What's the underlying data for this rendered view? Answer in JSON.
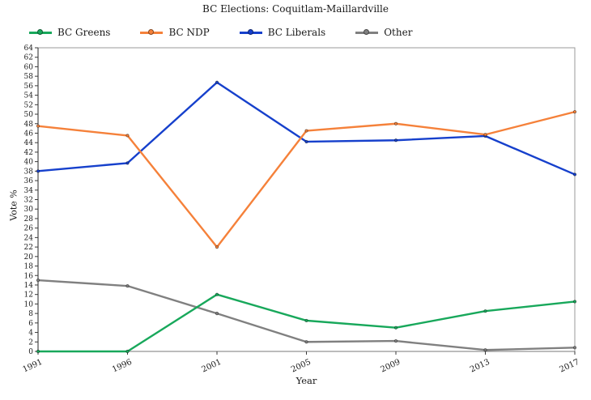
{
  "chart_data": {
    "type": "line",
    "title": "BC Elections: Coquitlam-Maillardville",
    "xlabel": "Year",
    "ylabel": "Vote %",
    "categories": [
      1991,
      1996,
      2001,
      2005,
      2009,
      2013,
      2017
    ],
    "ylim": [
      0,
      64
    ],
    "ytick_step": 2,
    "grid": "off",
    "legend_position": "top-left",
    "series": [
      {
        "name": "BC Greens",
        "color": "#18a85b",
        "values": [
          0,
          0,
          12,
          6.5,
          5,
          8.5,
          10.5
        ]
      },
      {
        "name": "BC NDP",
        "color": "#f5813a",
        "values": [
          47.5,
          45.5,
          22,
          46.5,
          48,
          45.7,
          50.5
        ]
      },
      {
        "name": "BC Liberals",
        "color": "#1640cc",
        "values": [
          38,
          39.7,
          56.7,
          44.2,
          44.5,
          45.4,
          37.3
        ]
      },
      {
        "name": "Other",
        "color": "#808080",
        "values": [
          15,
          13.8,
          8,
          2,
          2.2,
          0.3,
          0.8
        ]
      }
    ],
    "axis_colors": {
      "left": "#3a3a3a",
      "bottom": "#7a7a7a",
      "box": "#9a9a9a",
      "tick": "#3a3a3a"
    }
  }
}
